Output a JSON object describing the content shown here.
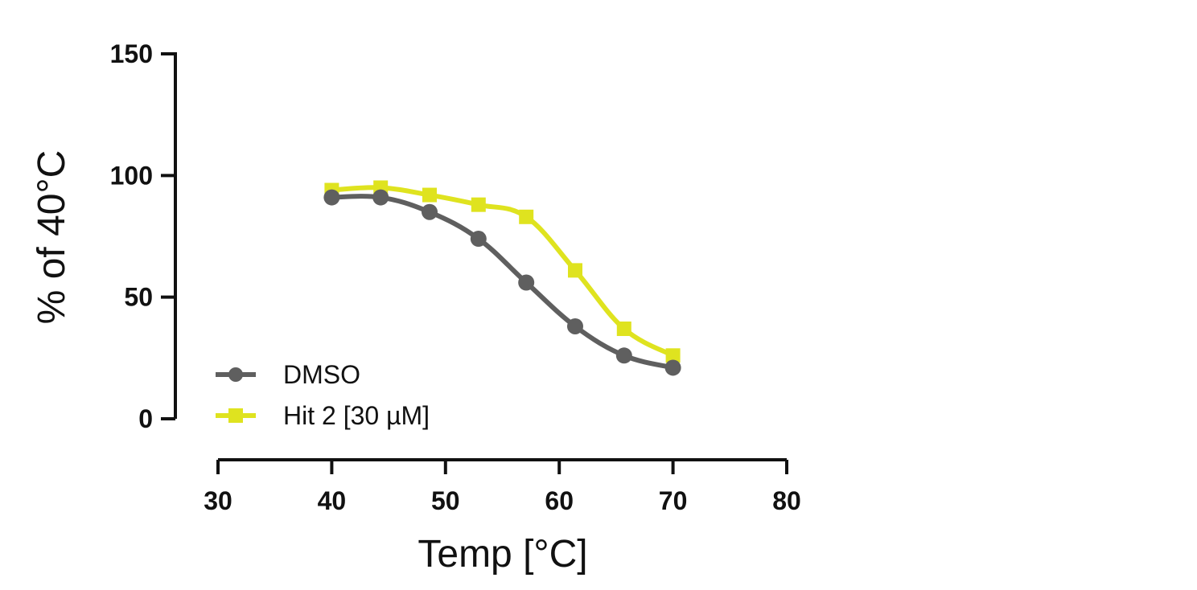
{
  "chart_data": {
    "type": "line",
    "xlabel": "Temp [°C]",
    "ylabel": "% of 40°C",
    "xlim": [
      30,
      80
    ],
    "ylim": [
      0,
      150
    ],
    "x_ticks": [
      "30",
      "40",
      "50",
      "60",
      "70",
      "80"
    ],
    "y_ticks": [
      "0",
      "50",
      "100",
      "150"
    ],
    "grid": false,
    "legend_position": "bottom-left",
    "series": [
      {
        "name": "DMSO",
        "marker": "circle",
        "color": "#5f5f5f",
        "x": [
          40,
          44.3,
          48.6,
          52.9,
          57.1,
          61.4,
          65.7,
          70
        ],
        "y": [
          91,
          91,
          85,
          74,
          56,
          38,
          26,
          21
        ]
      },
      {
        "name": "Hit 2 [30 µM]",
        "marker": "square",
        "color": "#dfe31f",
        "x": [
          40,
          44.3,
          48.6,
          52.9,
          57.1,
          61.4,
          65.7,
          70
        ],
        "y": [
          94,
          95,
          92,
          88,
          83,
          61,
          37,
          26
        ]
      }
    ]
  }
}
